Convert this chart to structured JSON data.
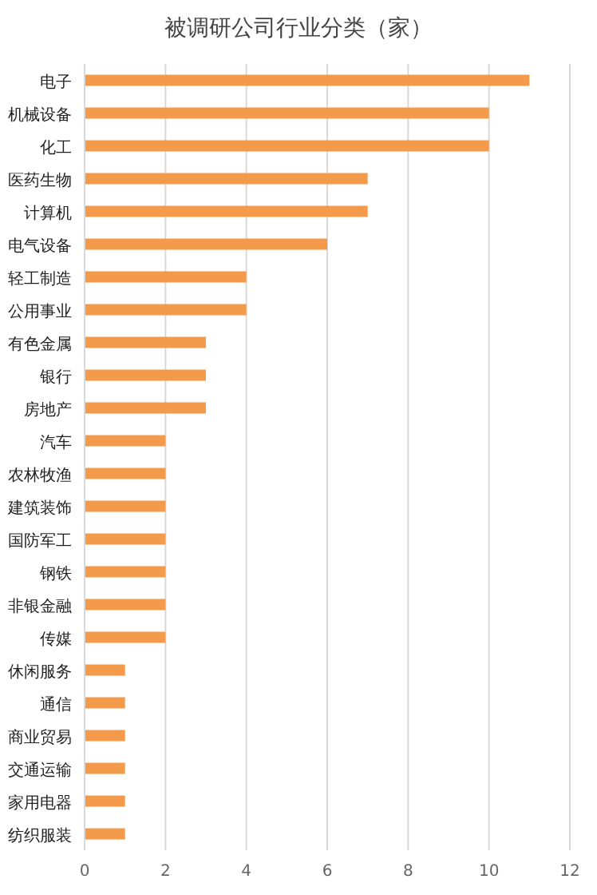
{
  "chart_data": {
    "type": "bar",
    "orientation": "horizontal",
    "title": "被调研公司行业分类（家）",
    "categories": [
      "电子",
      "机械设备",
      "化工",
      "医药生物",
      "计算机",
      "电气设备",
      "轻工制造",
      "公用事业",
      "有色金属",
      "银行",
      "房地产",
      "汽车",
      "农林牧渔",
      "建筑装饰",
      "国防军工",
      "钢铁",
      "非银金融",
      "传媒",
      "休闲服务",
      "通信",
      "商业贸易",
      "交通运输",
      "家用电器",
      "纺织服装"
    ],
    "values": [
      11,
      10,
      10,
      7,
      7,
      6,
      4,
      4,
      3,
      3,
      3,
      2,
      2,
      2,
      2,
      2,
      2,
      2,
      1,
      1,
      1,
      1,
      1,
      1
    ],
    "color": "#f39a4b",
    "xlim": [
      0,
      12
    ],
    "xticks": [
      0,
      2,
      4,
      6,
      8,
      10,
      12
    ],
    "grid": "x"
  }
}
